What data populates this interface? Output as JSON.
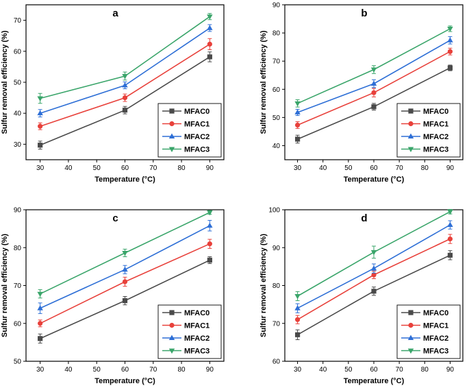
{
  "colors": {
    "MFAC0": "#4a4a4a",
    "MFAC1": "#e8413b",
    "MFAC2": "#2e6fd6",
    "MFAC3": "#3aa56a"
  },
  "chart_data": [
    {
      "panel": "a",
      "type": "line",
      "xlabel": "Temperature (°C)",
      "ylabel": "Sulfur removal efficiency (%)",
      "x": [
        30,
        60,
        90
      ],
      "xlim": [
        25,
        95
      ],
      "xticks": [
        30,
        40,
        50,
        60,
        70,
        80,
        90
      ],
      "ylim": [
        25,
        75
      ],
      "yticks": [
        30,
        40,
        50,
        60,
        70
      ],
      "legend_position": "bottom-right",
      "series": [
        {
          "name": "MFAC0",
          "marker": "square",
          "values": [
            29.7,
            41.0,
            58.2
          ],
          "errors": [
            1.3,
            1.2,
            1.6
          ]
        },
        {
          "name": "MFAC1",
          "marker": "circle",
          "values": [
            35.8,
            45.0,
            62.3
          ],
          "errors": [
            1.1,
            1.2,
            1.8
          ]
        },
        {
          "name": "MFAC2",
          "marker": "triangle-up",
          "values": [
            40.0,
            49.0,
            67.5
          ],
          "errors": [
            1.2,
            1.1,
            1.1
          ]
        },
        {
          "name": "MFAC3",
          "marker": "triangle-down",
          "values": [
            44.8,
            52.0,
            71.2
          ],
          "errors": [
            1.6,
            1.3,
            1.0
          ]
        }
      ]
    },
    {
      "panel": "b",
      "type": "line",
      "xlabel": "Temperature (°C)",
      "ylabel": "Sulfur removal efficiency (%)",
      "x": [
        30,
        60,
        90
      ],
      "xlim": [
        25,
        95
      ],
      "xticks": [
        30,
        40,
        50,
        60,
        70,
        80,
        90
      ],
      "ylim": [
        35,
        90
      ],
      "yticks": [
        40,
        50,
        60,
        70,
        80,
        90
      ],
      "legend_position": "bottom-right",
      "series": [
        {
          "name": "MFAC0",
          "marker": "square",
          "values": [
            42.3,
            53.8,
            67.6
          ],
          "errors": [
            1.4,
            1.2,
            1.0
          ]
        },
        {
          "name": "MFAC1",
          "marker": "circle",
          "values": [
            47.3,
            58.8,
            73.4
          ],
          "errors": [
            1.2,
            1.5,
            1.2
          ]
        },
        {
          "name": "MFAC2",
          "marker": "triangle-up",
          "values": [
            51.8,
            62.0,
            77.4
          ],
          "errors": [
            1.1,
            1.4,
            1.3
          ]
        },
        {
          "name": "MFAC3",
          "marker": "triangle-down",
          "values": [
            55.0,
            67.0,
            81.5
          ],
          "errors": [
            1.3,
            1.4,
            1.0
          ]
        }
      ]
    },
    {
      "panel": "c",
      "type": "line",
      "xlabel": "Temperature (°C)",
      "ylabel": "Sulfur removal efficiency (%)",
      "x": [
        30,
        60,
        90
      ],
      "xlim": [
        25,
        95
      ],
      "xticks": [
        30,
        40,
        50,
        60,
        70,
        80,
        90
      ],
      "ylim": [
        50,
        90
      ],
      "yticks": [
        50,
        60,
        70,
        80,
        90
      ],
      "legend_position": "bottom-right",
      "series": [
        {
          "name": "MFAC0",
          "marker": "square",
          "values": [
            56.0,
            66.0,
            76.7
          ],
          "errors": [
            1.2,
            1.1,
            0.9
          ]
        },
        {
          "name": "MFAC1",
          "marker": "circle",
          "values": [
            60.0,
            71.0,
            81.0
          ],
          "errors": [
            0.9,
            1.2,
            1.2
          ]
        },
        {
          "name": "MFAC2",
          "marker": "triangle-up",
          "values": [
            64.0,
            74.2,
            85.8
          ],
          "errors": [
            1.4,
            1.1,
            1.4
          ]
        },
        {
          "name": "MFAC3",
          "marker": "triangle-down",
          "values": [
            67.8,
            78.6,
            89.3
          ],
          "errors": [
            1.1,
            1.0,
            0.5
          ]
        }
      ]
    },
    {
      "panel": "d",
      "type": "line",
      "xlabel": "Temperature (°C)",
      "ylabel": "Sulfur removal efficiency (%)",
      "x": [
        30,
        60,
        90
      ],
      "xlim": [
        25,
        95
      ],
      "xticks": [
        30,
        40,
        50,
        60,
        70,
        80,
        90
      ],
      "ylim": [
        60,
        100
      ],
      "yticks": [
        60,
        70,
        80,
        90,
        100
      ],
      "legend_position": "bottom-right",
      "series": [
        {
          "name": "MFAC0",
          "marker": "square",
          "values": [
            67.0,
            78.5,
            88.0
          ],
          "errors": [
            1.3,
            1.1,
            1.2
          ]
        },
        {
          "name": "MFAC1",
          "marker": "circle",
          "values": [
            71.0,
            82.8,
            92.3
          ],
          "errors": [
            1.1,
            1.0,
            1.2
          ]
        },
        {
          "name": "MFAC2",
          "marker": "triangle-up",
          "values": [
            74.0,
            84.5,
            96.0
          ],
          "errors": [
            1.2,
            1.2,
            1.1
          ]
        },
        {
          "name": "MFAC3",
          "marker": "triangle-down",
          "values": [
            77.2,
            88.8,
            99.5
          ],
          "errors": [
            1.2,
            1.6,
            0.6
          ]
        }
      ]
    }
  ]
}
